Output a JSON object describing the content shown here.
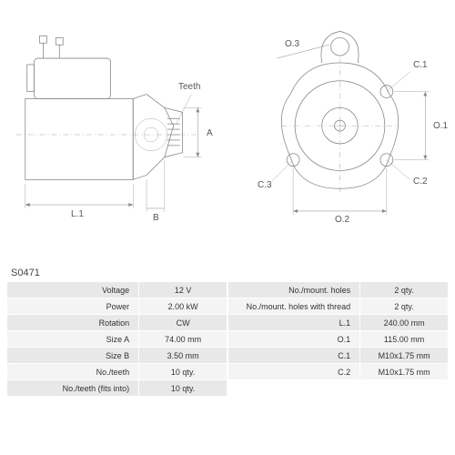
{
  "part_code": "S0471",
  "diagram_left": {
    "labels": {
      "L1": "L.1",
      "B": "B",
      "A": "A",
      "Teeth": "Teeth"
    }
  },
  "diagram_right": {
    "labels": {
      "O1": "O.1",
      "O2": "O.2",
      "O3": "O.3",
      "C1": "C.1",
      "C2": "C.2",
      "C3": "C.3"
    }
  },
  "specs_left": [
    {
      "label": "Voltage",
      "value": "12 V"
    },
    {
      "label": "Power",
      "value": "2.00 kW"
    },
    {
      "label": "Rotation",
      "value": "CW"
    },
    {
      "label": "Size A",
      "value": "74.00 mm"
    },
    {
      "label": "Size B",
      "value": "3.50 mm"
    },
    {
      "label": "No./teeth",
      "value": "10 qty."
    },
    {
      "label": "No./teeth (fits into)",
      "value": "10 qty."
    }
  ],
  "specs_right": [
    {
      "label": "No./mount. holes",
      "value": "2 qty."
    },
    {
      "label": "No./mount. holes with thread",
      "value": "2 qty."
    },
    {
      "label": "L.1",
      "value": "240.00 mm"
    },
    {
      "label": "O.1",
      "value": "115.00 mm"
    },
    {
      "label": "C.1",
      "value": "M10x1.75 mm"
    },
    {
      "label": "C.2",
      "value": "M10x1.75 mm"
    }
  ],
  "colors": {
    "row_odd": "#e8e8e8",
    "row_even": "#f4f4f4",
    "line": "#888888"
  }
}
